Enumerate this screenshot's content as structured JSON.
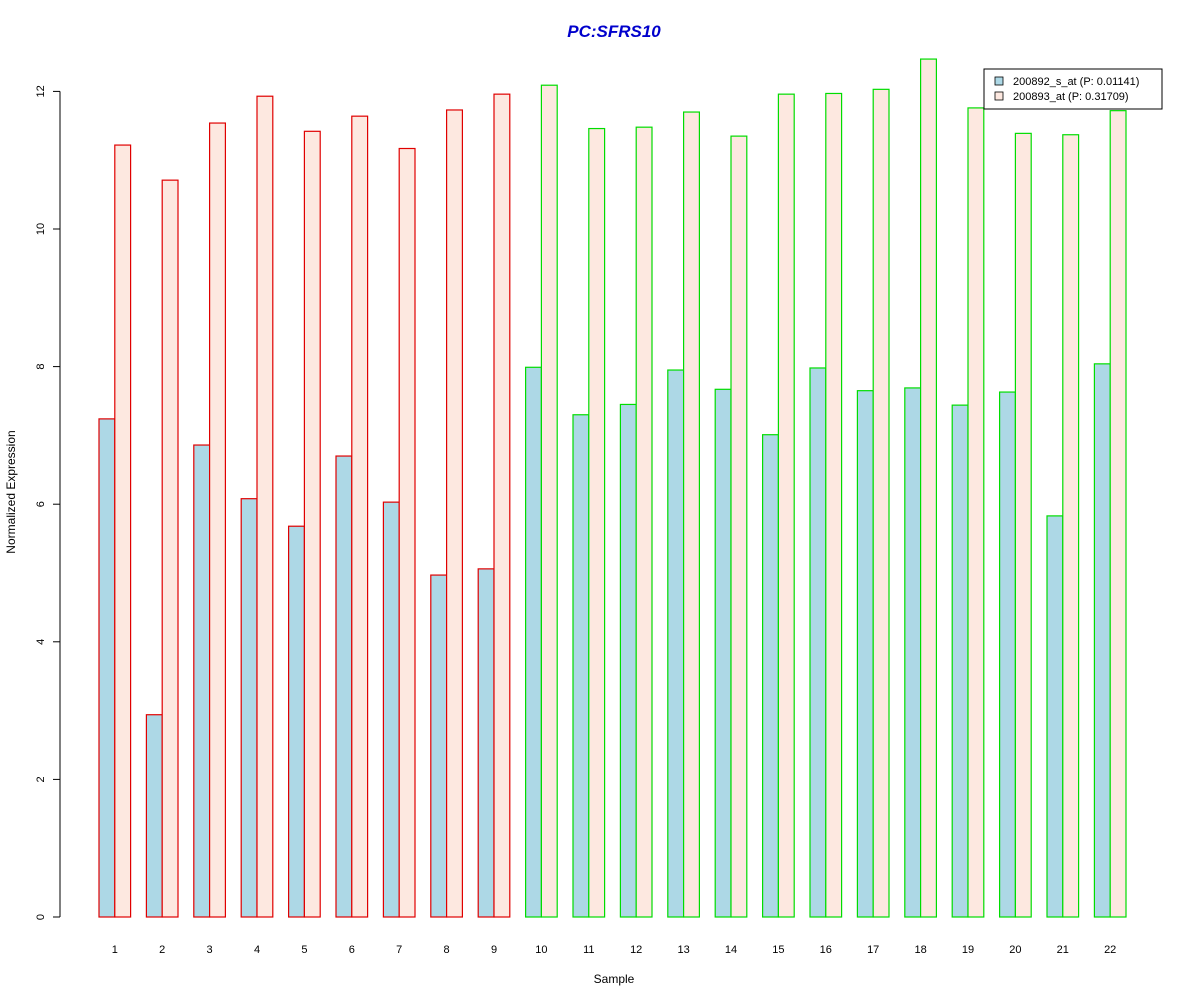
{
  "chart_data": {
    "type": "bar",
    "title": "PC:SFRS10",
    "xlabel": "Sample",
    "ylabel": "Normalized Expression",
    "categories": [
      "1",
      "2",
      "3",
      "4",
      "5",
      "6",
      "7",
      "8",
      "9",
      "10",
      "11",
      "12",
      "13",
      "14",
      "15",
      "16",
      "17",
      "18",
      "19",
      "20",
      "21",
      "22"
    ],
    "series": [
      {
        "name": "200892_s_at (P: 0.01141)",
        "values": [
          7.24,
          2.94,
          6.86,
          6.08,
          5.68,
          6.7,
          6.03,
          4.97,
          5.06,
          7.99,
          7.3,
          7.45,
          7.95,
          7.67,
          7.01,
          7.98,
          7.65,
          7.69,
          7.44,
          7.63,
          5.83,
          8.04
        ]
      },
      {
        "name": "200893_at (P: 0.31709)",
        "values": [
          11.22,
          10.71,
          11.54,
          11.93,
          11.42,
          11.64,
          11.17,
          11.73,
          11.96,
          12.09,
          11.46,
          11.48,
          11.7,
          11.35,
          11.96,
          11.97,
          12.03,
          12.47,
          11.76,
          11.39,
          11.37,
          11.72
        ]
      }
    ],
    "groups": [
      {
        "samples": [
          "1",
          "2",
          "3",
          "4",
          "5",
          "6",
          "7",
          "8",
          "9"
        ],
        "border_color": "#e00000"
      },
      {
        "samples": [
          "10",
          "11",
          "12",
          "13",
          "14",
          "15",
          "16",
          "17",
          "18",
          "19",
          "20",
          "21",
          "22"
        ],
        "border_color": "#00dd00"
      }
    ],
    "series_fill_colors": [
      "#add8e6",
      "#fde8e0"
    ],
    "title_color": "#0000cc",
    "yticks": [
      "0",
      "2",
      "4",
      "6",
      "8",
      "10",
      "12"
    ],
    "ylim": [
      0,
      12.6
    ],
    "grid": false,
    "legend_position": "top-right"
  }
}
